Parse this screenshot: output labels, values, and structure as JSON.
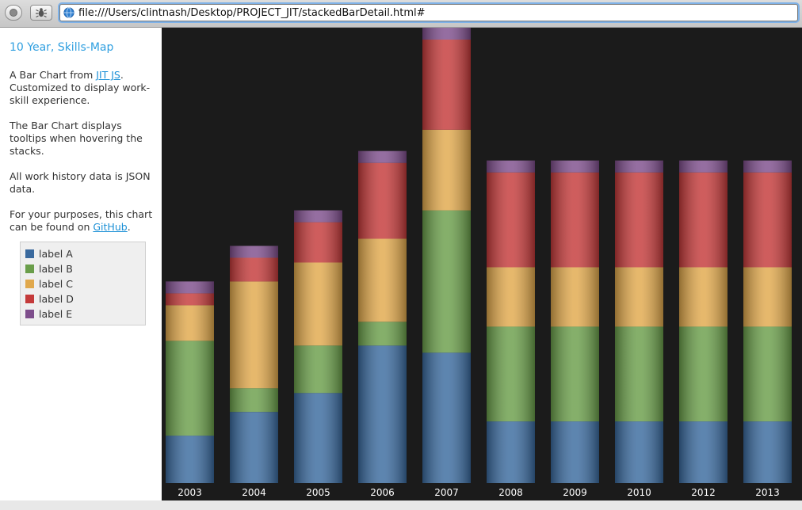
{
  "browser": {
    "url": "file:///Users/clintnash/Desktop/PROJECT_JIT/stackedBarDetail.html#"
  },
  "sidebar": {
    "title": "10 Year, Skills-Map",
    "p1_before": "A Bar Chart from ",
    "p1_link": "JIT JS",
    "p1_after": ". Customized to display work-skill experience.",
    "p2": "The Bar Chart displays tooltips when hovering the stacks.",
    "p3": "All work history data is JSON data.",
    "p4_before": "For your purposes, this chart can be found on ",
    "p4_link": "GitHub",
    "p4_after": "."
  },
  "legend": [
    {
      "label": "label A",
      "color": "#3a6a9e"
    },
    {
      "label": "label B",
      "color": "#6a9e4a"
    },
    {
      "label": "label C",
      "color": "#e0a84c"
    },
    {
      "label": "label D",
      "color": "#c43a3a"
    },
    {
      "label": "label E",
      "color": "#7e4e8c"
    }
  ],
  "chart_data": {
    "type": "bar",
    "stacked": true,
    "categories": [
      "2003",
      "2004",
      "2005",
      "2006",
      "2007",
      "2008",
      "2009",
      "2010",
      "2012",
      "2013"
    ],
    "series": [
      {
        "name": "label A",
        "color": "#3a6a9e",
        "values": [
          2.0,
          3.0,
          3.8,
          5.8,
          5.5,
          2.6,
          2.6,
          2.6,
          2.6,
          2.6
        ]
      },
      {
        "name": "label B",
        "color": "#6a9e4a",
        "values": [
          4.0,
          1.0,
          2.0,
          1.0,
          6.0,
          4.0,
          4.0,
          4.0,
          4.0,
          4.0
        ]
      },
      {
        "name": "label C",
        "color": "#e0a84c",
        "values": [
          1.5,
          4.5,
          3.5,
          3.5,
          3.4,
          2.5,
          2.5,
          2.5,
          2.5,
          2.5
        ]
      },
      {
        "name": "label D",
        "color": "#c43a3a",
        "values": [
          0.5,
          1.0,
          1.7,
          3.2,
          3.8,
          4.0,
          4.0,
          4.0,
          4.0,
          4.0
        ]
      },
      {
        "name": "label E",
        "color": "#7e4e8c",
        "values": [
          0.5,
          0.5,
          0.5,
          0.5,
          0.5,
          0.5,
          0.5,
          0.5,
          0.5,
          0.5
        ]
      }
    ],
    "ylim": [
      0,
      19.2
    ],
    "grid": false,
    "legend_position": "left"
  }
}
